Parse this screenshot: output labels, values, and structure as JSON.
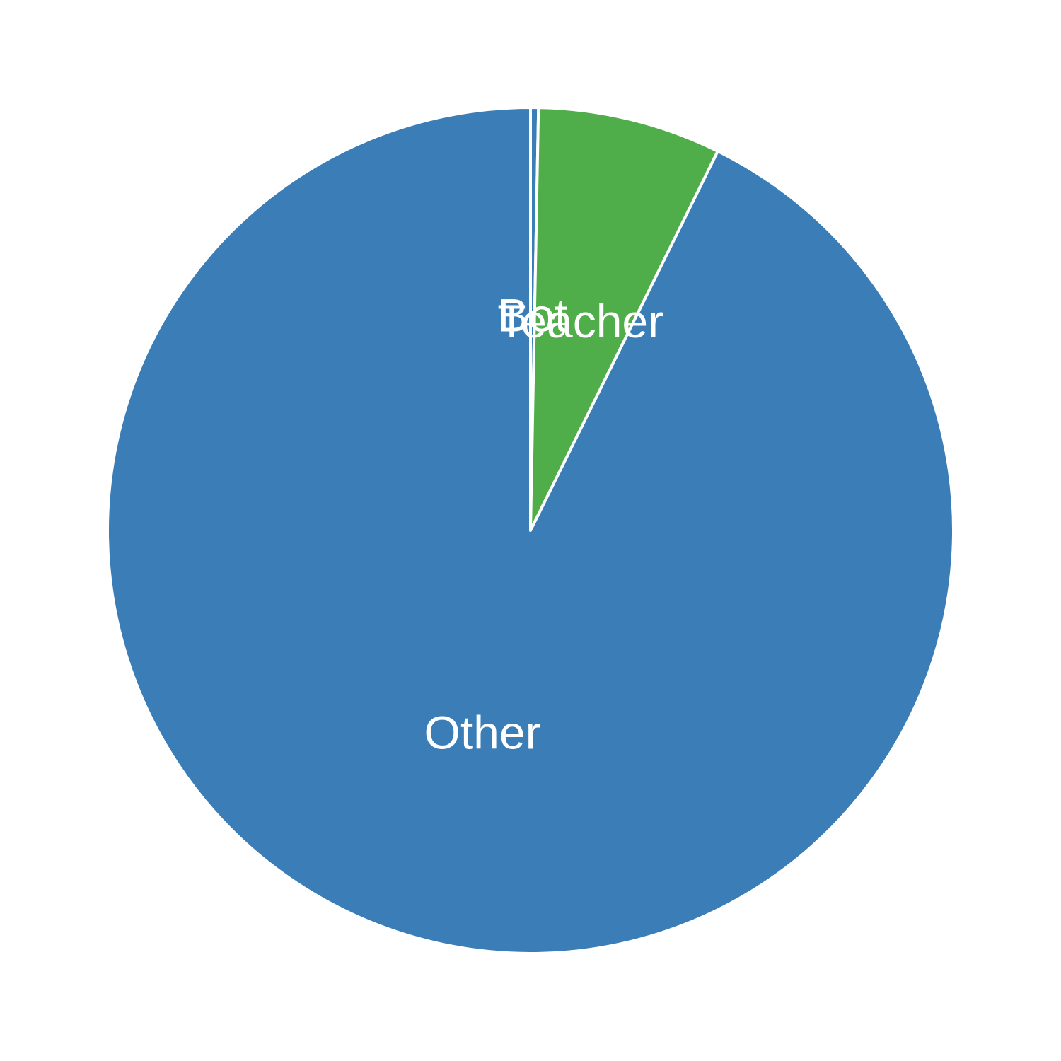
{
  "chart_data": {
    "type": "pie",
    "title": "",
    "slices": [
      {
        "label": "Bot",
        "value": 0.3,
        "color": "#3a7db7"
      },
      {
        "label": "Teacher",
        "value": 7.0,
        "color": "#50ae4a"
      },
      {
        "label": "Other",
        "value": 92.7,
        "color": "#3a7db7"
      }
    ],
    "start_angle_deg": 90,
    "direction": "clockwise",
    "legend": "none"
  }
}
